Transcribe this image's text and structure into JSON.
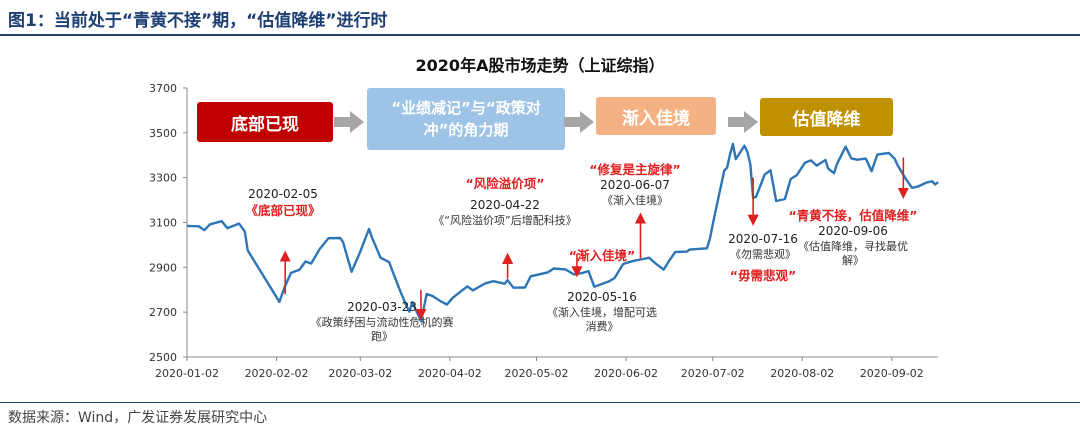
{
  "figure": {
    "title": "图1：当前处于“青黄不接”期，“估值降维”进行时",
    "source": "数据来源：Wind，广发证券发展研究中心"
  },
  "phases": [
    {
      "label": "底部已现",
      "color": "#c00000"
    },
    {
      "label": "“业绩减记”与“政策对冲”的角力期",
      "color": "#9dc3e6"
    },
    {
      "label": "渐入佳境",
      "color": "#f4b183"
    },
    {
      "label": "估值降维",
      "color": "#bf9000"
    }
  ],
  "annotations": [
    {
      "date": "2020-02-05",
      "desc": "《底部已现》",
      "direction": "up"
    },
    {
      "date": "2020-03-23",
      "desc": "《政策纾困与流动性危机的赛跑》",
      "direction": "down"
    },
    {
      "tag": "“风险溢价项”",
      "date": "2020-04-22",
      "desc": "《“风险溢价项”后增配科技》",
      "direction": "up"
    },
    {
      "tag": "“渐入佳境”",
      "date": "2020-05-16",
      "desc": "《渐入佳境，增配可选消费》",
      "direction": "down"
    },
    {
      "tag": "“修复是主旋律”",
      "date": "2020-06-07",
      "desc": "《渐入佳境》",
      "direction": "up"
    },
    {
      "date": "2020-07-16",
      "desc": "《勿需悲观》",
      "tag": "“毋需悲观”",
      "direction": "down"
    },
    {
      "tag": "“青黄不接，估值降维”",
      "date": "2020-09-06",
      "desc": "《估值降维，寻找最优解》",
      "direction": "down"
    }
  ],
  "chart_data": {
    "type": "line",
    "title": "2020年A股市场走势（上证综指）",
    "xlabel": "",
    "ylabel": "",
    "ylim": [
      2500,
      3700
    ],
    "yticks": [
      2500,
      2700,
      2900,
      3100,
      3300,
      3500,
      3700
    ],
    "xticks": [
      "2020-01-02",
      "2020-02-02",
      "2020-03-02",
      "2020-04-02",
      "2020-05-02",
      "2020-06-02",
      "2020-07-02",
      "2020-08-02",
      "2020-09-02"
    ],
    "xrange": [
      "2020-01-02",
      "2020-09-18"
    ],
    "series": [
      {
        "name": "上证综指",
        "color": "#2e75b6",
        "points": [
          [
            "2020-01-02",
            3085
          ],
          [
            "2020-01-06",
            3083
          ],
          [
            "2020-01-08",
            3066
          ],
          [
            "2020-01-10",
            3092
          ],
          [
            "2020-01-14",
            3106
          ],
          [
            "2020-01-16",
            3075
          ],
          [
            "2020-01-20",
            3095
          ],
          [
            "2020-01-22",
            3060
          ],
          [
            "2020-01-23",
            2976
          ],
          [
            "2020-02-03",
            2746
          ],
          [
            "2020-02-04",
            2783
          ],
          [
            "2020-02-05",
            2818
          ],
          [
            "2020-02-07",
            2875
          ],
          [
            "2020-02-10",
            2890
          ],
          [
            "2020-02-12",
            2926
          ],
          [
            "2020-02-14",
            2917
          ],
          [
            "2020-02-17",
            2983
          ],
          [
            "2020-02-20",
            3030
          ],
          [
            "2020-02-24",
            3031
          ],
          [
            "2020-02-25",
            3013
          ],
          [
            "2020-02-28",
            2880
          ],
          [
            "2020-03-02",
            2970
          ],
          [
            "2020-03-05",
            3071
          ],
          [
            "2020-03-06",
            3034
          ],
          [
            "2020-03-09",
            2943
          ],
          [
            "2020-03-12",
            2923
          ],
          [
            "2020-03-13",
            2887
          ],
          [
            "2020-03-16",
            2789
          ],
          [
            "2020-03-18",
            2728
          ],
          [
            "2020-03-19",
            2702
          ],
          [
            "2020-03-20",
            2745
          ],
          [
            "2020-03-23",
            2660
          ],
          [
            "2020-03-25",
            2781
          ],
          [
            "2020-03-27",
            2772
          ],
          [
            "2020-03-30",
            2747
          ],
          [
            "2020-04-01",
            2734
          ],
          [
            "2020-04-03",
            2764
          ],
          [
            "2020-04-08",
            2815
          ],
          [
            "2020-04-10",
            2797
          ],
          [
            "2020-04-14",
            2827
          ],
          [
            "2020-04-17",
            2838
          ],
          [
            "2020-04-21",
            2827
          ],
          [
            "2020-04-22",
            2843
          ],
          [
            "2020-04-24",
            2809
          ],
          [
            "2020-04-28",
            2810
          ],
          [
            "2020-04-30",
            2860
          ],
          [
            "2020-05-06",
            2878
          ],
          [
            "2020-05-08",
            2895
          ],
          [
            "2020-05-12",
            2891
          ],
          [
            "2020-05-15",
            2868
          ],
          [
            "2020-05-18",
            2875
          ],
          [
            "2020-05-20",
            2883
          ],
          [
            "2020-05-22",
            2813
          ],
          [
            "2020-05-27",
            2837
          ],
          [
            "2020-05-29",
            2852
          ],
          [
            "2020-06-01",
            2915
          ],
          [
            "2020-06-03",
            2923
          ],
          [
            "2020-06-05",
            2930
          ],
          [
            "2020-06-08",
            2937
          ],
          [
            "2020-06-10",
            2943
          ],
          [
            "2020-06-12",
            2920
          ],
          [
            "2020-06-15",
            2890
          ],
          [
            "2020-06-17",
            2931
          ],
          [
            "2020-06-19",
            2968
          ],
          [
            "2020-06-23",
            2970
          ],
          [
            "2020-06-24",
            2979
          ],
          [
            "2020-06-30",
            2985
          ],
          [
            "2020-07-01",
            3025
          ],
          [
            "2020-07-02",
            3090
          ],
          [
            "2020-07-03",
            3152
          ],
          [
            "2020-07-06",
            3332
          ],
          [
            "2020-07-07",
            3345
          ],
          [
            "2020-07-08",
            3403
          ],
          [
            "2020-07-09",
            3450
          ],
          [
            "2020-07-10",
            3383
          ],
          [
            "2020-07-13",
            3443
          ],
          [
            "2020-07-14",
            3414
          ],
          [
            "2020-07-15",
            3361
          ],
          [
            "2020-07-16",
            3210
          ],
          [
            "2020-07-17",
            3214
          ],
          [
            "2020-07-20",
            3314
          ],
          [
            "2020-07-22",
            3333
          ],
          [
            "2020-07-24",
            3196
          ],
          [
            "2020-07-27",
            3205
          ],
          [
            "2020-07-29",
            3294
          ],
          [
            "2020-07-31",
            3310
          ],
          [
            "2020-08-03",
            3367
          ],
          [
            "2020-08-05",
            3377
          ],
          [
            "2020-08-07",
            3354
          ],
          [
            "2020-08-10",
            3379
          ],
          [
            "2020-08-11",
            3340
          ],
          [
            "2020-08-13",
            3320
          ],
          [
            "2020-08-14",
            3360
          ],
          [
            "2020-08-17",
            3438
          ],
          [
            "2020-08-19",
            3386
          ],
          [
            "2020-08-21",
            3380
          ],
          [
            "2020-08-24",
            3385
          ],
          [
            "2020-08-26",
            3329
          ],
          [
            "2020-08-28",
            3403
          ],
          [
            "2020-09-01",
            3410
          ],
          [
            "2020-09-03",
            3384
          ],
          [
            "2020-09-04",
            3355
          ],
          [
            "2020-09-07",
            3292
          ],
          [
            "2020-09-09",
            3255
          ],
          [
            "2020-09-11",
            3260
          ],
          [
            "2020-09-14",
            3278
          ],
          [
            "2020-09-16",
            3284
          ],
          [
            "2020-09-17",
            3270
          ],
          [
            "2020-09-18",
            3280
          ]
        ]
      }
    ]
  }
}
